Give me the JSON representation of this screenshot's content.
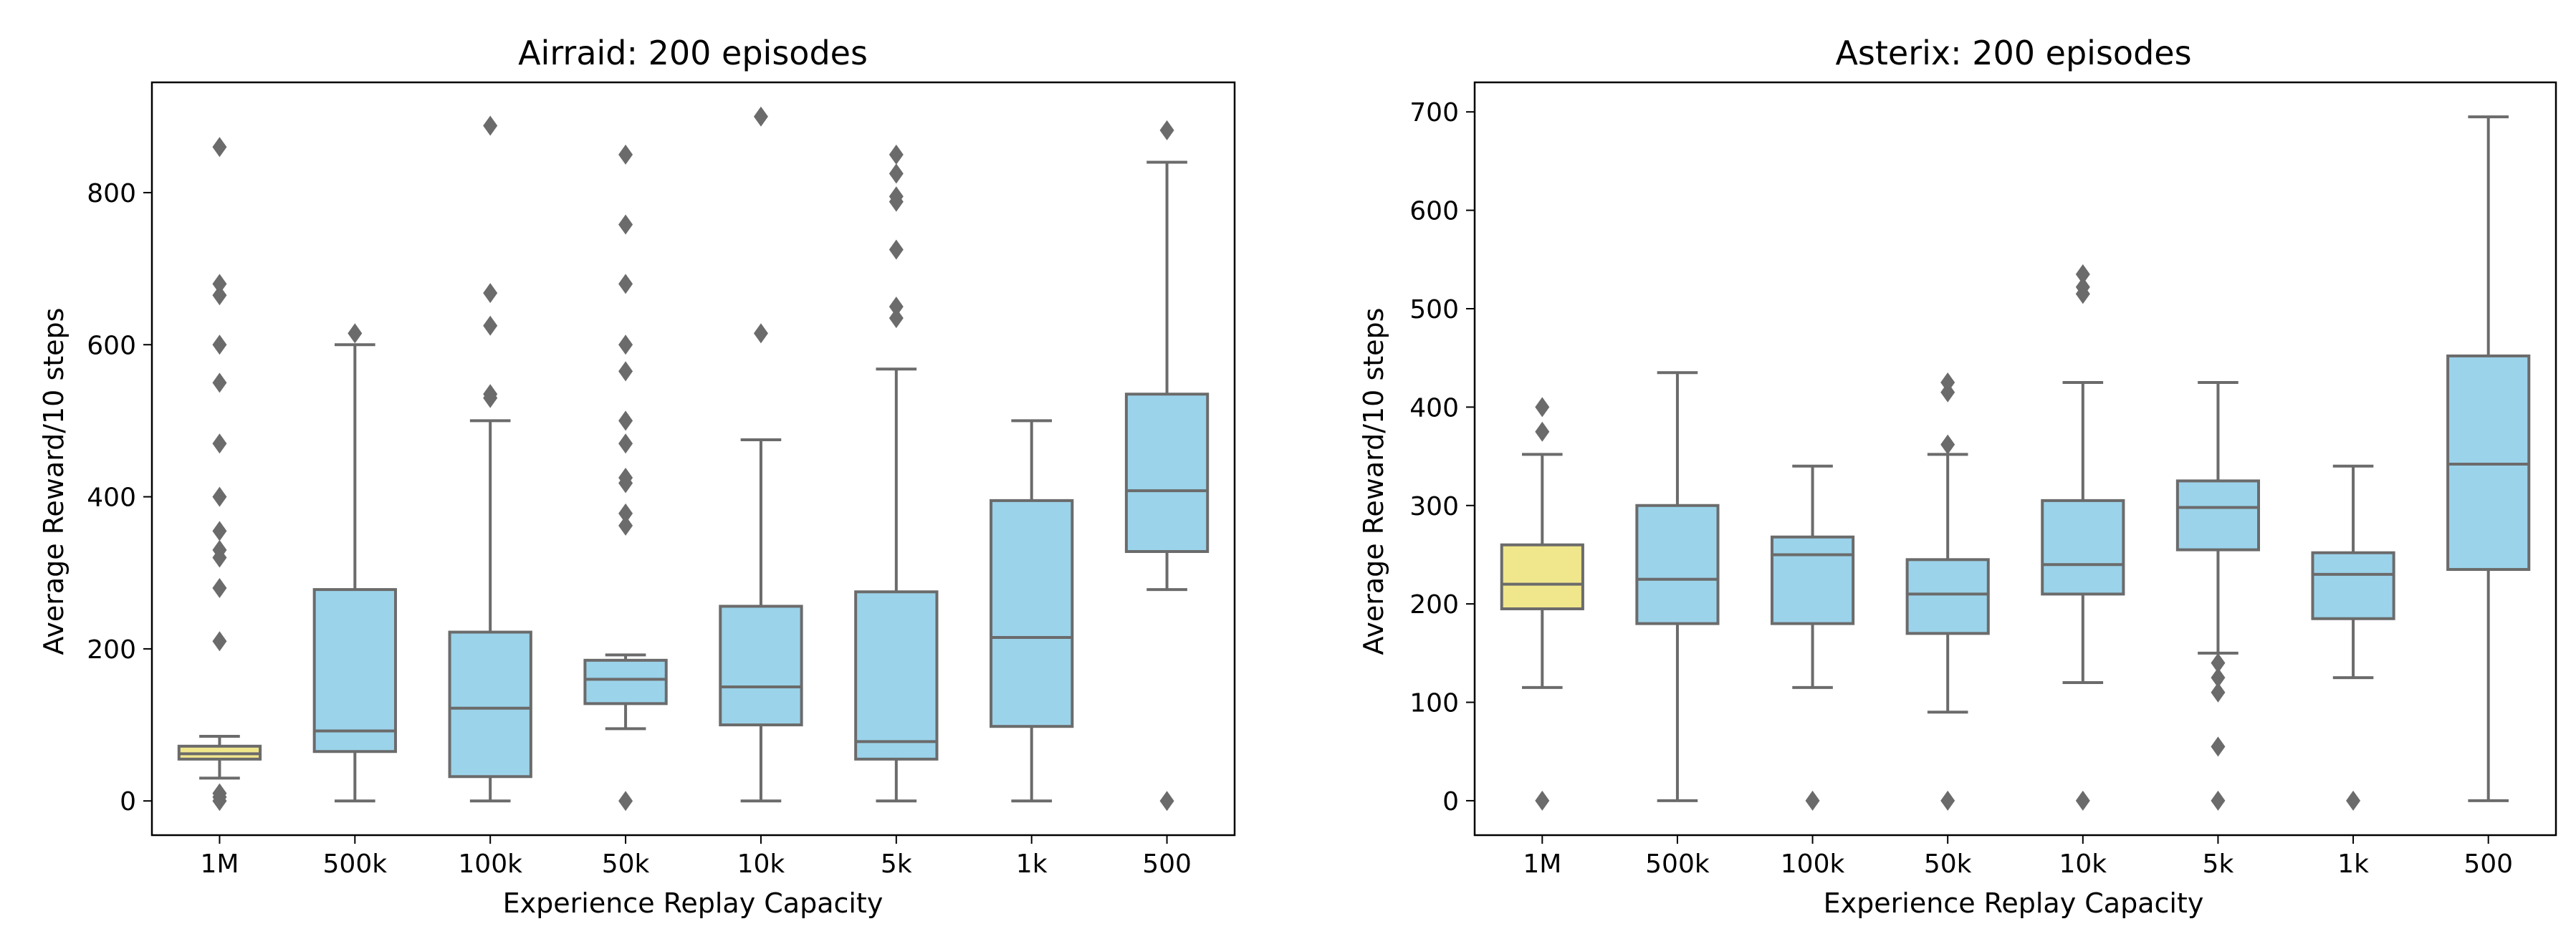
{
  "colors": {
    "box_default": "#9bd3ea",
    "box_highlight": "#f0e68c",
    "line": "#6b6b6b",
    "flier": "#6b6b6b",
    "axes": "#000000"
  },
  "chart_data": [
    {
      "type": "box",
      "title": "Airraid: 200 episodes",
      "xlabel": "Experience Replay Capacity",
      "ylabel": "Average Reward/10 steps",
      "ylim": [
        -45,
        945
      ],
      "yticks": [
        0,
        200,
        400,
        600,
        800
      ],
      "categories": [
        "1M",
        "500k",
        "100k",
        "50k",
        "10k",
        "5k",
        "1k",
        "500"
      ],
      "highlight_index": 0,
      "boxes": [
        {
          "category": "1M",
          "whisker_low": 30,
          "q1": 55,
          "median": 62,
          "q3": 72,
          "whisker_high": 85,
          "fliers": [
            0,
            5,
            10,
            210,
            280,
            320,
            330,
            355,
            400,
            470,
            550,
            600,
            665,
            680,
            860
          ]
        },
        {
          "category": "500k",
          "whisker_low": 0,
          "q1": 65,
          "median": 92,
          "q3": 278,
          "whisker_high": 600,
          "fliers": [
            615
          ]
        },
        {
          "category": "100k",
          "whisker_low": 0,
          "q1": 32,
          "median": 122,
          "q3": 222,
          "whisker_high": 500,
          "fliers": [
            530,
            535,
            625,
            668,
            888
          ]
        },
        {
          "category": "50k",
          "whisker_low": 95,
          "q1": 128,
          "median": 160,
          "q3": 185,
          "whisker_high": 192,
          "fliers": [
            0,
            362,
            378,
            418,
            425,
            470,
            500,
            565,
            600,
            680,
            758,
            850
          ]
        },
        {
          "category": "10k",
          "whisker_low": 0,
          "q1": 100,
          "median": 150,
          "q3": 256,
          "whisker_high": 475,
          "fliers": [
            615,
            900
          ]
        },
        {
          "category": "5k",
          "whisker_low": 0,
          "q1": 55,
          "median": 78,
          "q3": 275,
          "whisker_high": 568,
          "fliers": [
            635,
            650,
            725,
            788,
            795,
            825,
            850
          ]
        },
        {
          "category": "1k",
          "whisker_low": 0,
          "q1": 98,
          "median": 215,
          "q3": 395,
          "whisker_high": 500,
          "fliers": []
        },
        {
          "category": "500",
          "whisker_low": 278,
          "q1": 328,
          "median": 408,
          "q3": 535,
          "whisker_high": 840,
          "fliers": [
            0,
            882
          ]
        }
      ]
    },
    {
      "type": "box",
      "title": "Asterix: 200 episodes",
      "xlabel": "Experience Replay Capacity",
      "ylabel": "Average Reward/10 steps",
      "ylim": [
        -35,
        730
      ],
      "yticks": [
        0,
        100,
        200,
        300,
        400,
        500,
        600,
        700
      ],
      "categories": [
        "1M",
        "500k",
        "100k",
        "50k",
        "10k",
        "5k",
        "1k",
        "500"
      ],
      "highlight_index": 0,
      "boxes": [
        {
          "category": "1M",
          "whisker_low": 115,
          "q1": 195,
          "median": 220,
          "q3": 260,
          "whisker_high": 352,
          "fliers": [
            0,
            375,
            400
          ]
        },
        {
          "category": "500k",
          "whisker_low": 0,
          "q1": 180,
          "median": 225,
          "q3": 300,
          "whisker_high": 435,
          "fliers": []
        },
        {
          "category": "100k",
          "whisker_low": 115,
          "q1": 180,
          "median": 250,
          "q3": 268,
          "whisker_high": 340,
          "fliers": [
            0
          ]
        },
        {
          "category": "50k",
          "whisker_low": 90,
          "q1": 170,
          "median": 210,
          "q3": 245,
          "whisker_high": 352,
          "fliers": [
            0,
            362,
            415,
            425
          ]
        },
        {
          "category": "10k",
          "whisker_low": 120,
          "q1": 210,
          "median": 240,
          "q3": 305,
          "whisker_high": 425,
          "fliers": [
            0,
            515,
            522,
            535
          ]
        },
        {
          "category": "5k",
          "whisker_low": 150,
          "q1": 255,
          "median": 298,
          "q3": 325,
          "whisker_high": 425,
          "fliers": [
            0,
            55,
            110,
            125,
            140
          ]
        },
        {
          "category": "1k",
          "whisker_low": 125,
          "q1": 185,
          "median": 230,
          "q3": 252,
          "whisker_high": 340,
          "fliers": [
            0
          ]
        },
        {
          "category": "500",
          "whisker_low": 0,
          "q1": 235,
          "median": 342,
          "q3": 452,
          "whisker_high": 695,
          "fliers": []
        }
      ]
    }
  ]
}
